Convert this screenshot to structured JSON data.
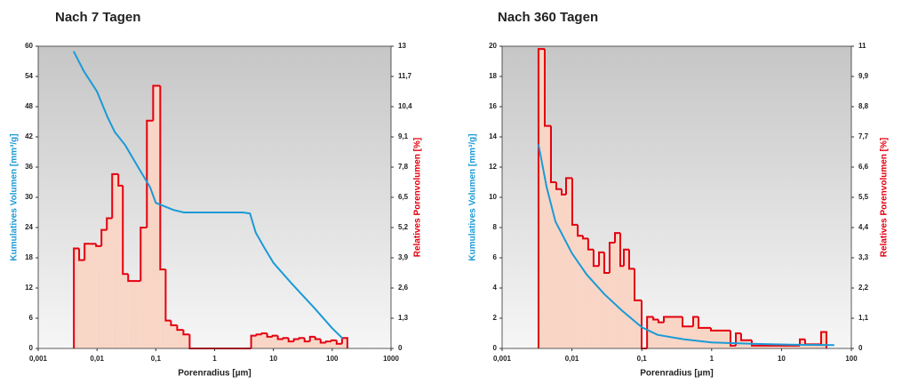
{
  "chart_data": [
    {
      "type": "combo",
      "title": "Nach 7 Tagen",
      "xlabel": "Porenradius [µm]",
      "ylabel": "Kumulatives Volumen [mm³/g]",
      "y2label": "Relatives Porenvolumen [%]",
      "xscale": "log",
      "xlim": [
        0.001,
        1000
      ],
      "xticks": [
        {
          "value": 0.001,
          "label": "0,001"
        },
        {
          "value": 0.01,
          "label": "0,01"
        },
        {
          "value": 0.1,
          "label": "0,1"
        },
        1,
        10,
        100,
        1000
      ],
      "ylim": [
        0,
        60
      ],
      "yticks": [
        0,
        6,
        12,
        18,
        24,
        30,
        36,
        42,
        48,
        54,
        60
      ],
      "y2lim": [
        0,
        13
      ],
      "y2ticks": [
        0,
        {
          "value": 1.3,
          "label": "1,3"
        },
        {
          "value": 2.6,
          "label": "2,6"
        },
        {
          "value": 3.9,
          "label": "3,9"
        },
        {
          "value": 5.2,
          "label": "5,2"
        },
        {
          "value": 6.5,
          "label": "6,5"
        },
        {
          "value": 7.8,
          "label": "7,8"
        },
        {
          "value": 9.1,
          "label": "9,1"
        },
        {
          "value": 10.4,
          "label": "10,4"
        },
        {
          "value": 11.7,
          "label": "11,7"
        },
        13
      ],
      "series": [
        {
          "type": "histogram",
          "axis": "y2",
          "color": "#e3000f",
          "fill": "#f9d5c6",
          "bins": [
            0.00404,
            0.00497,
            0.00614,
            0.00757,
            0.00966,
            0.0119,
            0.0147,
            0.0181,
            0.0231,
            0.0275,
            0.0339,
            0.0552,
            0.0705,
            0.0901,
            0.119,
            0.147,
            0.181,
            0.231,
            0.295,
            0.376,
            4.18,
            5.15,
            6.35,
            7.83,
            9.66,
            11.9,
            14.7,
            18.1,
            22.3,
            27.5,
            33.9,
            41.8,
            51.5,
            63.5,
            78.3,
            96.6,
            119,
            147,
            181
          ],
          "values": [
            4.3,
            3.8,
            4.5,
            4.5,
            4.4,
            5.1,
            5.6,
            7.5,
            7.0,
            3.2,
            2.9,
            5.2,
            9.8,
            11.3,
            3.4,
            1.2,
            1.0,
            0.8,
            0.6,
            0,
            0.55,
            0.6,
            0.65,
            0.5,
            0.55,
            0.4,
            0.45,
            0.3,
            0.4,
            0.45,
            0.3,
            0.5,
            0.4,
            0.25,
            0.3,
            0.35,
            0.2,
            0.45
          ]
        },
        {
          "type": "line",
          "color": "#1a9ad6",
          "x": [
            0.004,
            0.006,
            0.01,
            0.015,
            0.02,
            0.03,
            0.05,
            0.08,
            0.1,
            0.2,
            0.3,
            1,
            3,
            4,
            5,
            7,
            10,
            20,
            50,
            100,
            150
          ],
          "values": [
            59,
            55,
            51,
            46,
            43,
            40.4,
            36,
            32,
            28.9,
            27.5,
            27,
            27,
            27,
            26.8,
            23,
            20,
            17,
            13,
            8,
            4,
            2
          ]
        }
      ]
    },
    {
      "type": "combo",
      "title": "Nach 360 Tagen",
      "xlabel": "Porenradius [µm]",
      "ylabel": "Kumulatives Volumen [mm³/g]",
      "y2label": "Relatives Porenvolumen [%]",
      "xscale": "log",
      "xlim": [
        0.001,
        100
      ],
      "xticks": [
        {
          "value": 0.001,
          "label": "0,001"
        },
        {
          "value": 0.01,
          "label": "0,01"
        },
        {
          "value": 0.1,
          "label": "0,1"
        },
        1,
        10,
        100
      ],
      "ylim": [
        0,
        20
      ],
      "yticks": [
        0,
        2,
        4,
        6,
        8,
        10,
        12,
        14,
        16,
        18,
        20
      ],
      "y2lim": [
        0,
        11
      ],
      "y2ticks": [
        0,
        {
          "value": 1.1,
          "label": "1,1"
        },
        {
          "value": 2.2,
          "label": "2,2"
        },
        {
          "value": 3.3,
          "label": "3,3"
        },
        {
          "value": 4.4,
          "label": "4,4"
        },
        {
          "value": 5.5,
          "label": "5,5"
        },
        {
          "value": 6.6,
          "label": "6,6"
        },
        {
          "value": 7.7,
          "label": "7,7"
        },
        {
          "value": 8.8,
          "label": "8,8"
        },
        {
          "value": 9.9,
          "label": "9,9"
        },
        11
      ],
      "series": [
        {
          "type": "histogram",
          "axis": "y2",
          "color": "#e3000f",
          "fill": "#f9d5c6",
          "bins": [
            0.00332,
            0.00408,
            0.00501,
            0.00597,
            0.00712,
            0.00824,
            0.0101,
            0.0121,
            0.0144,
            0.0171,
            0.0204,
            0.0244,
            0.029,
            0.0346,
            0.0413,
            0.0492,
            0.0553,
            0.0659,
            0.0787,
            0.0994,
            0.119,
            0.146,
            0.173,
            0.207,
            0.383,
            0.544,
            0.649,
            0.977,
            1.86,
            2.22,
            2.64,
            3.76,
            18.3,
            21.8,
            31.0,
            36.9,
            44.0
          ],
          "values": [
            10.9,
            8.1,
            6.05,
            5.8,
            5.6,
            6.2,
            4.5,
            4.1,
            4.0,
            3.6,
            3.0,
            3.5,
            2.75,
            3.85,
            4.2,
            3.0,
            3.6,
            2.9,
            1.75,
            0,
            1.15,
            1.05,
            0.95,
            1.15,
            0.8,
            1.15,
            0.75,
            0.65,
            0.1,
            0.55,
            0.3,
            0.1,
            0.33,
            0.15,
            0.15,
            0.6
          ]
        },
        {
          "type": "line",
          "color": "#1a9ad6",
          "x": [
            0.00332,
            0.00433,
            0.0058,
            0.01,
            0.0162,
            0.029,
            0.0522,
            0.1,
            0.168,
            0.406,
            1,
            4.23,
            18.1,
            57
          ],
          "values": [
            13.5,
            10.7,
            8.4,
            6.3,
            4.9,
            3.6,
            2.5,
            1.4,
            0.9,
            0.6,
            0.4,
            0.3,
            0.24,
            0.22
          ]
        }
      ]
    }
  ]
}
